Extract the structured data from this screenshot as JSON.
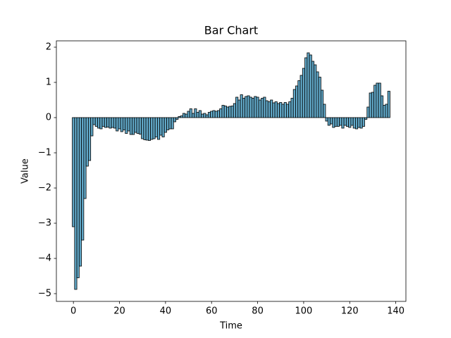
{
  "chart_data": {
    "type": "bar",
    "title": "Bar Chart",
    "x_label": "Time",
    "y_label": "Value",
    "x": [
      0,
      1,
      2,
      3,
      4,
      5,
      6,
      7,
      8,
      9,
      10,
      11,
      12,
      13,
      14,
      15,
      16,
      17,
      18,
      19,
      20,
      21,
      22,
      23,
      24,
      25,
      26,
      27,
      28,
      29,
      30,
      31,
      32,
      33,
      34,
      35,
      36,
      37,
      38,
      39,
      40,
      41,
      42,
      43,
      44,
      45,
      46,
      47,
      48,
      49,
      50,
      51,
      52,
      53,
      54,
      55,
      56,
      57,
      58,
      59,
      60,
      61,
      62,
      63,
      64,
      65,
      66,
      67,
      68,
      69,
      70,
      71,
      72,
      73,
      74,
      75,
      76,
      77,
      78,
      79,
      80,
      81,
      82,
      83,
      84,
      85,
      86,
      87,
      88,
      89,
      90,
      91,
      92,
      93,
      94,
      95,
      96,
      97,
      98,
      99,
      100,
      101,
      102,
      103,
      104,
      105,
      106,
      107,
      108,
      109,
      110,
      111,
      112,
      113,
      114,
      115,
      116,
      117,
      118,
      119,
      120,
      121,
      122,
      123,
      124,
      125,
      126,
      127,
      128,
      129,
      130,
      131,
      132,
      133,
      134,
      135,
      136,
      137
    ],
    "values": [
      -3.1,
      -4.88,
      -4.55,
      -4.22,
      -3.48,
      -2.3,
      -1.38,
      -1.22,
      -0.52,
      -0.2,
      -0.25,
      -0.3,
      -0.32,
      -0.25,
      -0.28,
      -0.27,
      -0.3,
      -0.28,
      -0.3,
      -0.38,
      -0.32,
      -0.4,
      -0.35,
      -0.45,
      -0.38,
      -0.48,
      -0.48,
      -0.42,
      -0.45,
      -0.47,
      -0.6,
      -0.63,
      -0.64,
      -0.65,
      -0.62,
      -0.6,
      -0.55,
      -0.62,
      -0.5,
      -0.55,
      -0.42,
      -0.35,
      -0.32,
      -0.32,
      -0.12,
      -0.05,
      0.03,
      0.05,
      0.12,
      0.1,
      0.18,
      0.25,
      0.12,
      0.25,
      0.15,
      0.2,
      0.1,
      0.12,
      0.08,
      0.15,
      0.18,
      0.2,
      0.18,
      0.2,
      0.25,
      0.35,
      0.33,
      0.3,
      0.32,
      0.33,
      0.4,
      0.58,
      0.5,
      0.65,
      0.55,
      0.6,
      0.62,
      0.58,
      0.55,
      0.6,
      0.58,
      0.5,
      0.55,
      0.58,
      0.48,
      0.45,
      0.5,
      0.42,
      0.45,
      0.4,
      0.43,
      0.38,
      0.43,
      0.38,
      0.45,
      0.55,
      0.8,
      0.9,
      1.05,
      1.2,
      1.4,
      1.7,
      1.84,
      1.78,
      1.6,
      1.5,
      1.3,
      1.15,
      0.78,
      0.38,
      -0.1,
      -0.22,
      -0.18,
      -0.28,
      -0.25,
      -0.25,
      -0.22,
      -0.3,
      -0.22,
      -0.25,
      -0.28,
      -0.22,
      -0.3,
      -0.32,
      -0.28,
      -0.3,
      -0.25,
      -0.05,
      0.3,
      0.7,
      0.72,
      0.92,
      0.98,
      0.98,
      0.62,
      0.35,
      0.38,
      0.75
    ],
    "color": "#62a9c9",
    "edgecolor": "#000000",
    "xlim": [
      -7.4,
      144.4
    ],
    "xticks": [
      0,
      20,
      40,
      60,
      80,
      100,
      120,
      140
    ],
    "ylim": [
      -5.22,
      2.18
    ],
    "yticks": [
      {
        "value": -5,
        "label": "−5"
      },
      {
        "value": -4,
        "label": "−4"
      },
      {
        "value": -3,
        "label": "−3"
      },
      {
        "value": -2,
        "label": "−2"
      },
      {
        "value": -1,
        "label": "−1"
      },
      0,
      1,
      2
    ],
    "grid": false
  }
}
